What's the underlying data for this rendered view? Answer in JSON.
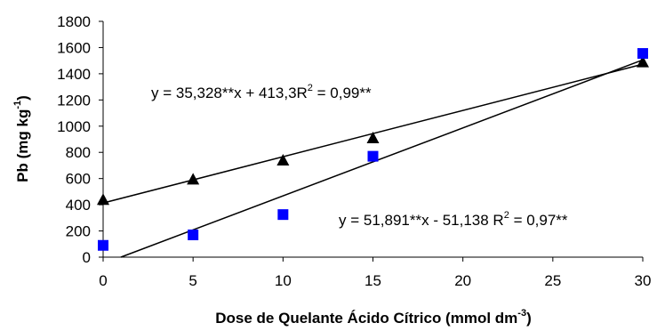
{
  "chart_data": {
    "type": "scatter",
    "xlabel": "Dose de Quelante Ácido Cítrico (mmol dm",
    "xlabel_sup": "-3",
    "xlabel_end": ")",
    "ylabel": "Pb (mg kg",
    "ylabel_sup": "-1",
    "ylabel_end": ")",
    "xlim": [
      0,
      30
    ],
    "ylim": [
      0,
      1800
    ],
    "x_ticks": [
      "0",
      "5",
      "10",
      "15",
      "20",
      "25",
      "30"
    ],
    "y_ticks": [
      "0",
      "200",
      "400",
      "600",
      "800",
      "1000",
      "1200",
      "1400",
      "1600",
      "1800"
    ],
    "grid": false,
    "series": [
      {
        "marker": "triangle",
        "color": "#000000",
        "x": [
          0,
          5,
          10,
          15,
          30
        ],
        "values": [
          440,
          595,
          740,
          910,
          1490
        ],
        "fit": {
          "slope": 35.328,
          "intercept": 413.3
        },
        "equation": {
          "prefix": "y = 35,328**x + 413,3R",
          "sup": "2",
          "suffix": " = 0,99**"
        }
      },
      {
        "marker": "square",
        "color": "#0000ff",
        "x": [
          0,
          5,
          10,
          15,
          30
        ],
        "values": [
          90,
          170,
          325,
          770,
          1555
        ],
        "fit": {
          "slope": 51.891,
          "intercept": -51.138
        },
        "equation": {
          "prefix": "y = 51,891**x - 51,138  R",
          "sup": "2",
          "suffix": " = 0,97**"
        }
      }
    ]
  }
}
